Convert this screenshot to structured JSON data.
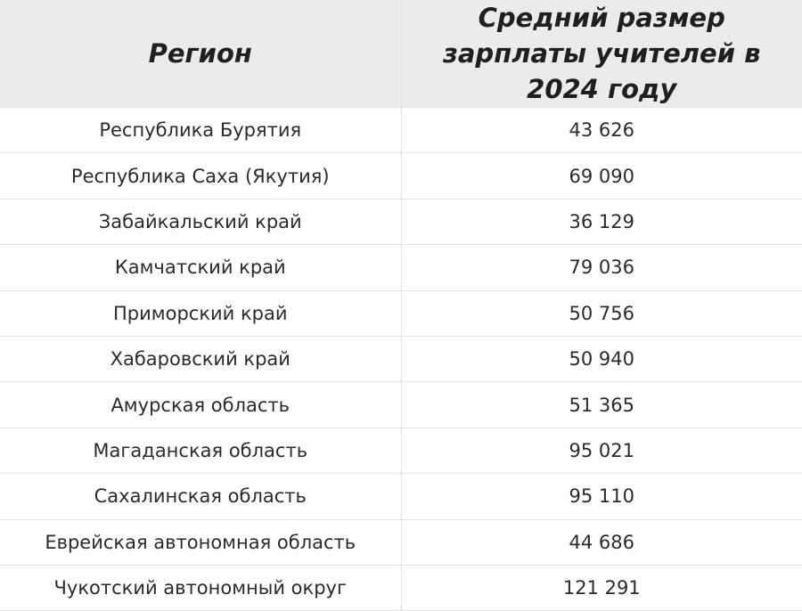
{
  "table": {
    "headers": [
      "Регион",
      "Средний размер зарплаты учителей в 2024 году"
    ],
    "rows": [
      {
        "region": "Республика Бурятия",
        "salary": "43 626"
      },
      {
        "region": "Республика Саха (Якутия)",
        "salary": "69 090"
      },
      {
        "region": "Забайкальский край",
        "salary": "36 129"
      },
      {
        "region": "Камчатский край",
        "salary": "79 036"
      },
      {
        "region": "Приморский край",
        "salary": "50 756"
      },
      {
        "region": "Хабаровский край",
        "salary": "50 940"
      },
      {
        "region": "Амурская область",
        "salary": "51 365"
      },
      {
        "region": "Магаданская область",
        "salary": "95 021"
      },
      {
        "region": "Сахалинская область",
        "salary": "95 110"
      },
      {
        "region": "Еврейская автономная область",
        "salary": "44 686"
      },
      {
        "region": "Чукотский автономный округ",
        "salary": "121 291"
      }
    ]
  },
  "colors": {
    "header_bg": "#ebebeb",
    "border": "#e3e3e3",
    "text": "#2b2b2b"
  }
}
